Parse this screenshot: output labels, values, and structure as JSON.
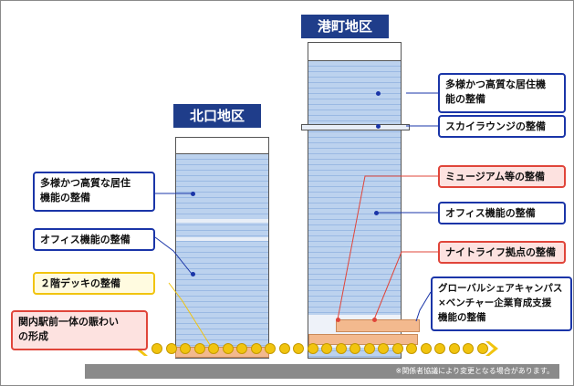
{
  "districts": {
    "kita": "北口地区",
    "minato": "港町地区"
  },
  "labels": {
    "kita_residential": "多様かつ高質な居住\n機能の整備",
    "kita_office": "オフィス機能の整備",
    "deck": "２階デッキの整備",
    "station": "関内駅前一体の賑わい\nの形成",
    "minato_residential": "多様かつ高質な居住機\n能の整備",
    "sky_lounge": "スカイラウンジの整備",
    "museum": "ミュージアム等の整備",
    "minato_office": "オフィス機能の整備",
    "nightlife": "ナイトライフ拠点の整備",
    "campus": "グローバルシェアキャンパス\n×ベンチャー企業育成支援\n機能の整備"
  },
  "note": "※関係者協議により変更となる場合があります。",
  "colors": {
    "blue": "#1a35a8",
    "red": "#e0453a",
    "yellow": "#f1c40f",
    "navy": "#1f3d8a"
  }
}
